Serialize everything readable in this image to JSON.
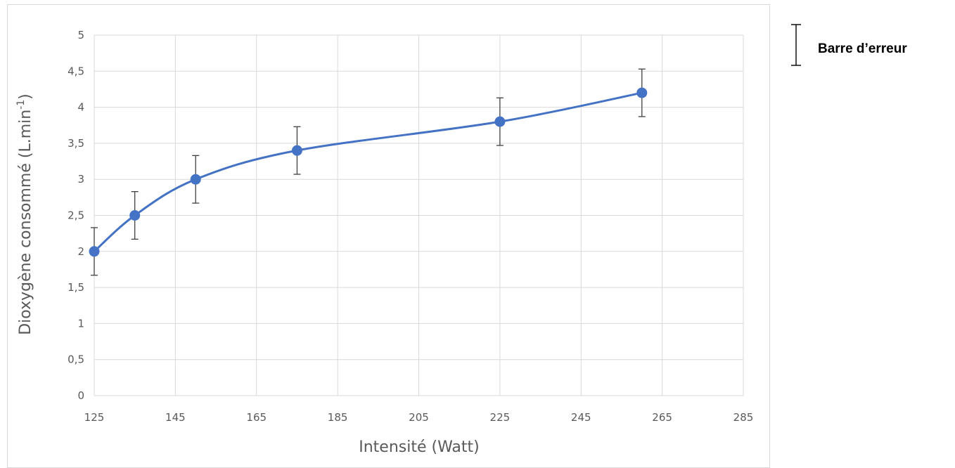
{
  "chart_data": {
    "type": "scatter",
    "smooth_line": true,
    "xlabel": "Intensité (Watt)",
    "ylabel_main": "Dioxygène consommé (L.min",
    "ylabel_sup": "-1",
    "ylabel_close": ")",
    "xlim": [
      125,
      285
    ],
    "ylim": [
      0,
      5
    ],
    "xticks": [
      125,
      145,
      165,
      185,
      205,
      225,
      245,
      265,
      285
    ],
    "yticks": [
      0,
      0.5,
      1,
      1.5,
      2,
      2.5,
      3,
      3.5,
      4,
      4.5,
      5
    ],
    "ytick_labels": [
      "0",
      "0,5",
      "1",
      "1,5",
      "2",
      "2,5",
      "3",
      "3,5",
      "4",
      "4,5",
      "5"
    ],
    "grid": true,
    "series": [
      {
        "x": [
          125,
          135,
          150,
          175,
          225,
          260
        ],
        "y": [
          2.0,
          2.5,
          3.0,
          3.4,
          3.8,
          4.2
        ],
        "error": [
          0.33,
          0.33,
          0.33,
          0.33,
          0.33,
          0.33
        ],
        "color": "#4472C4"
      }
    ],
    "legend": {
      "label": "Barre d’erreur",
      "placement": "right"
    },
    "colors": {
      "grid": "#d9d9d9",
      "text": "#595959",
      "errorbar": "#404040"
    }
  }
}
